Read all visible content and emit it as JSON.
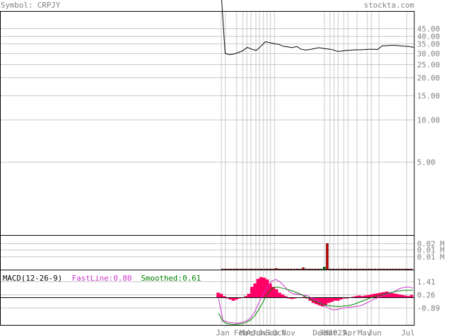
{
  "header": {
    "symbol_label": "Symbol: CRPJY",
    "site": "stockta.com"
  },
  "colors": {
    "background": "#ffffff",
    "frame": "#000000",
    "grid": "#c8c8c8",
    "axis_text": "#808080",
    "price_line": "#000000",
    "volume_up": "#008000",
    "volume_down": "#cc0000",
    "macd_hist": "#ff0066",
    "fast_line": "#cc33cc",
    "smoothed_line": "#008000",
    "macd_label": "#000000"
  },
  "chart_data": {
    "type": "line",
    "price": {
      "scale": "log",
      "ylim": [
        1.5,
        60
      ],
      "tick_labels": [
        "45.00",
        "40.00",
        "35.00",
        "30.00",
        "25.00",
        "20.00",
        "15.00",
        "10.00",
        "5.00"
      ],
      "tick_values": [
        45,
        40,
        35,
        30,
        25,
        20,
        15,
        10,
        5
      ],
      "values": [
        30.0,
        29.3,
        29.6,
        30.3,
        31.2,
        33.0,
        32.0,
        31.4,
        33.5,
        36.2,
        35.6,
        35.1,
        34.7,
        33.6,
        33.3,
        32.8,
        33.5,
        32.0,
        31.6,
        31.9,
        32.4,
        32.8,
        32.4,
        32.1,
        31.8,
        30.9,
        31.0,
        31.4,
        31.5,
        31.7,
        31.7,
        31.8,
        32.0,
        32.0,
        31.9,
        33.8,
        33.9,
        34.1,
        34.1,
        33.8,
        33.6,
        33.5,
        33.0
      ]
    },
    "x_labels": [
      "Jan",
      "Feb",
      "Mar",
      "Apr",
      "Jun",
      "Jul",
      "Sep",
      "Oct",
      "Nov",
      "Dec",
      "Jan",
      "Mar",
      "2025",
      "Apr",
      "May",
      "Jun",
      "Jul"
    ],
    "volume": {
      "tick_labels": [
        "0.02 M",
        "0.01 M",
        "0.01 M"
      ],
      "tick_values": [
        0.02,
        0.015,
        0.01
      ],
      "ylim": [
        0,
        0.026
      ],
      "values": [
        0.0002,
        0.0002,
        0.0002,
        0.0002,
        0.0001,
        0.0,
        0.0001,
        0.0001,
        0.0,
        0.0001,
        0.0001,
        0.0001,
        0.0,
        0.0002,
        0.0,
        0.0002,
        0.0,
        0.0,
        0.001,
        0.0002,
        0.0,
        0.0,
        0.0001,
        0.0001,
        0.0002,
        0.0001,
        0.0,
        0.0015,
        0.0,
        0.0003,
        0.0004,
        0.0,
        0.0001,
        0.0,
        0.002,
        0.0197,
        0.0002,
        0.0,
        0.0,
        0.0001,
        0.0002,
        0.0,
        0.0001,
        0.0,
        0.0,
        0.0,
        0.0,
        0.0,
        0.0,
        0.0,
        0.0003,
        0.0,
        0.0,
        0.0003,
        0.0,
        0.0,
        0.0,
        0.0,
        0.0,
        0.0,
        0.0,
        0.0,
        0.0003,
        0.0003
      ],
      "up": [
        false,
        false,
        false,
        false,
        false,
        false,
        false,
        false,
        false,
        false,
        false,
        false,
        false,
        false,
        false,
        false,
        false,
        false,
        false,
        false,
        false,
        false,
        false,
        false,
        false,
        false,
        false,
        false,
        false,
        false,
        false,
        false,
        false,
        true,
        true,
        false,
        false,
        false,
        false,
        false,
        false,
        false,
        false,
        false,
        false,
        false,
        false,
        false,
        false,
        false,
        false,
        false,
        false,
        false,
        false,
        false,
        false,
        false,
        false,
        false,
        false,
        false,
        false,
        false
      ]
    },
    "macd": {
      "title": "MACD(12-26-9)",
      "fast_label": "FastLine:",
      "fast_value": "0.80",
      "smoothed_label": "Smoothed:",
      "smoothed_value": "0.61",
      "tick_labels": [
        "1.41",
        "0.26",
        "-0.89"
      ],
      "tick_values": [
        1.41,
        0.26,
        -0.89
      ],
      "ylim": [
        -2.4,
        2.4
      ],
      "zero": 0,
      "histogram": [
        0.4,
        0.3,
        0.1,
        -0.1,
        -0.2,
        -0.3,
        -0.2,
        -0.1,
        0.0,
        0.1,
        0.3,
        0.9,
        1.2,
        1.6,
        1.75,
        1.7,
        1.55,
        1.2,
        0.9,
        0.7,
        0.4,
        0.25,
        0.1,
        -0.1,
        -0.15,
        -0.1,
        -0.05,
        0.0,
        0.05,
        -0.1,
        -0.3,
        -0.5,
        -0.6,
        -0.7,
        -0.8,
        -0.7,
        -0.5,
        -0.4,
        -0.3,
        -0.3,
        -0.2,
        -0.1,
        -0.1,
        0.0,
        0.05,
        0.1,
        0.15,
        0.1,
        0.15,
        0.2,
        0.25,
        0.3,
        0.35,
        0.4,
        0.45,
        0.5,
        0.4,
        0.35,
        0.3,
        0.25,
        0.2,
        0.15,
        0.1,
        0.2
      ],
      "fast": [
        -0.1,
        -2.0,
        -2.15,
        -2.2,
        -2.25,
        -2.2,
        -2.1,
        -1.9,
        -1.4,
        -0.6,
        0.2,
        0.9,
        1.4,
        1.55,
        1.3,
        0.9,
        0.5,
        0.3,
        0.25,
        0.2,
        0.15,
        -0.05,
        -0.2,
        -0.45,
        -0.75,
        -0.95,
        -1.1,
        -1.05,
        -0.95,
        -0.9,
        -0.85,
        -0.8,
        -0.75,
        -0.6,
        -0.4,
        -0.2,
        -0.05,
        0.1,
        0.25,
        0.35,
        0.55,
        0.75,
        0.85,
        0.9,
        0.8
      ],
      "smoothed": [
        -1.4,
        -2.1,
        -2.3,
        -2.35,
        -2.35,
        -2.3,
        -2.2,
        -2.0,
        -1.6,
        -1.0,
        -0.3,
        0.4,
        0.8,
        0.9,
        0.8,
        0.7,
        0.6,
        0.45,
        0.3,
        0.1,
        -0.1,
        -0.3,
        -0.45,
        -0.6,
        -0.7,
        -0.75,
        -0.8,
        -0.8,
        -0.75,
        -0.7,
        -0.6,
        -0.45,
        -0.3,
        -0.15,
        0.0,
        0.1,
        0.2,
        0.3,
        0.4,
        0.48,
        0.55,
        0.6,
        0.6,
        0.61
      ]
    }
  }
}
